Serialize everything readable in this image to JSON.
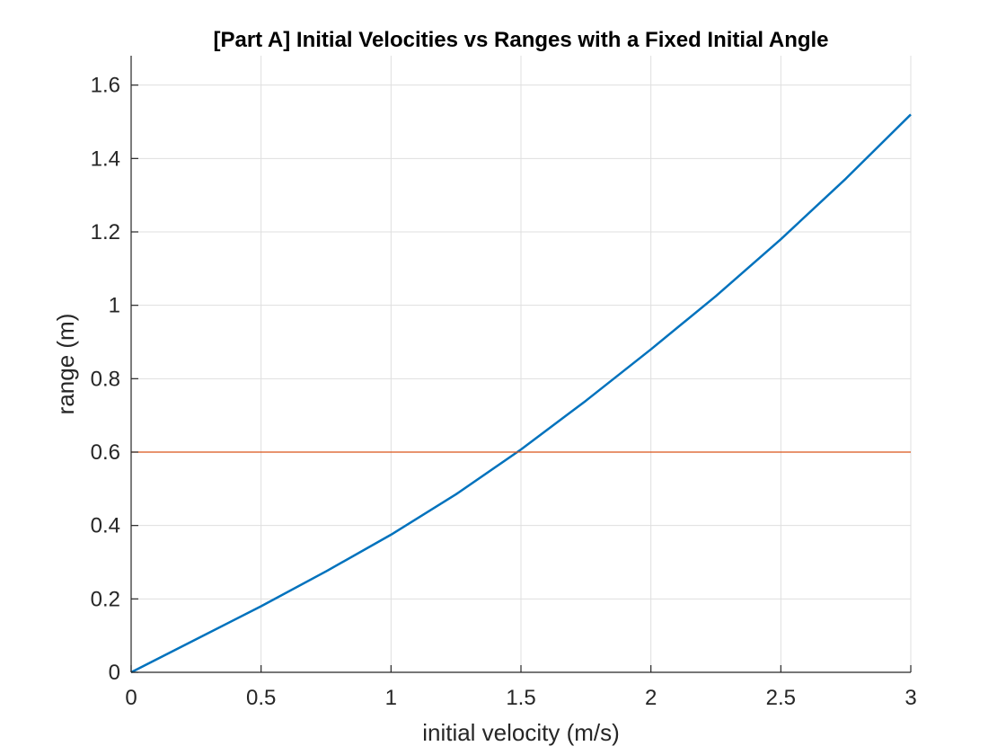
{
  "chart_data": {
    "type": "line",
    "title": "[Part A] Initial Velocities vs Ranges with a Fixed Initial Angle",
    "xlabel": "initial velocity (m/s)",
    "ylabel": "range (m)",
    "xlim": [
      0,
      3
    ],
    "ylim": [
      0,
      1.68
    ],
    "xticks": [
      0,
      0.5,
      1,
      1.5,
      2,
      2.5,
      3
    ],
    "xtick_labels": [
      "0",
      "0.5",
      "1",
      "1.5",
      "2",
      "2.5",
      "3"
    ],
    "yticks": [
      0,
      0.2,
      0.4,
      0.6,
      0.8,
      1,
      1.2,
      1.4,
      1.6
    ],
    "ytick_labels": [
      "0",
      "0.2",
      "0.4",
      "0.6",
      "0.8",
      "1",
      "1.2",
      "1.4",
      "1.6"
    ],
    "grid": true,
    "series": [
      {
        "color": "#0072bd",
        "x": [
          0,
          0.25,
          0.5,
          0.75,
          1,
          1.25,
          1.5,
          1.75,
          2,
          2.25,
          2.5,
          2.75,
          3
        ],
        "y": [
          0,
          0.09,
          0.18,
          0.275,
          0.375,
          0.485,
          0.607,
          0.74,
          0.88,
          1.025,
          1.18,
          1.345,
          1.52
        ]
      },
      {
        "color": "#d95319",
        "x": [
          0,
          3
        ],
        "y": [
          0.6,
          0.6
        ]
      }
    ]
  }
}
